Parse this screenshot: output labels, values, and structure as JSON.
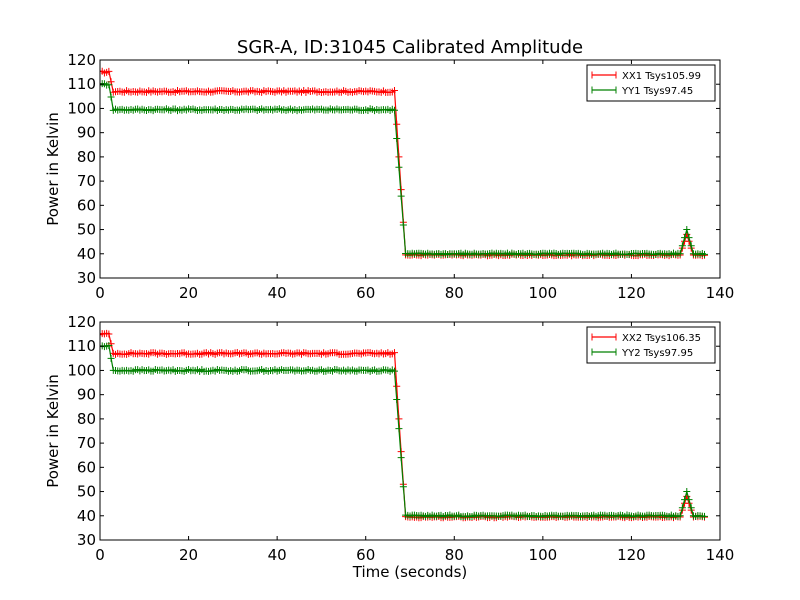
{
  "figure": {
    "title": "SGR-A, ID:31045 Calibrated Amplitude",
    "xlabel": "Time (seconds)"
  },
  "colors": {
    "red": "#ff0000",
    "green": "#008000"
  },
  "chart_data": [
    {
      "type": "line",
      "ylabel": "Power in Kelvin",
      "xlim": [
        0,
        140
      ],
      "ylim": [
        30,
        120
      ],
      "xticks": [
        0,
        20,
        40,
        60,
        80,
        100,
        120,
        140
      ],
      "yticks": [
        30,
        40,
        50,
        60,
        70,
        80,
        90,
        100,
        110,
        120
      ],
      "grid": false,
      "legend_position": "top-right",
      "series": [
        {
          "name": "XX1 Tsys105.99",
          "color": "#ff0000",
          "marker": "+",
          "profile": {
            "start": [
              0,
              2
            ],
            "start_y": 115,
            "step1_end": 3,
            "plateau": 107,
            "drop": [
              66.5,
              69
            ],
            "floor": 39.5,
            "bump": [
              131,
              134
            ],
            "bump_peak": 48,
            "end": 136.5
          }
        },
        {
          "name": "YY1 Tsys97.45",
          "color": "#008000",
          "marker": "+",
          "profile": {
            "start": [
              0,
              2
            ],
            "start_y": 110,
            "step1_end": 3,
            "plateau": 99.5,
            "drop": [
              66.5,
              69
            ],
            "floor": 40,
            "bump": [
              131,
              134
            ],
            "bump_peak": 50,
            "end": 136.5
          }
        }
      ]
    },
    {
      "type": "line",
      "ylabel": "Power in Kelvin",
      "xlabel": "Time (seconds)",
      "xlim": [
        0,
        140
      ],
      "ylim": [
        30,
        120
      ],
      "xticks": [
        0,
        20,
        40,
        60,
        80,
        100,
        120,
        140
      ],
      "yticks": [
        30,
        40,
        50,
        60,
        70,
        80,
        90,
        100,
        110,
        120
      ],
      "grid": false,
      "legend_position": "top-right",
      "series": [
        {
          "name": "XX2 Tsys106.35",
          "color": "#ff0000",
          "marker": "+",
          "profile": {
            "start": [
              0,
              2
            ],
            "start_y": 115,
            "step1_end": 3,
            "plateau": 107,
            "drop": [
              66.5,
              69
            ],
            "floor": 39.5,
            "bump": [
              131,
              134
            ],
            "bump_peak": 48,
            "end": 136.5
          }
        },
        {
          "name": "YY2 Tsys97.95",
          "color": "#008000",
          "marker": "+",
          "profile": {
            "start": [
              0,
              2
            ],
            "start_y": 110,
            "step1_end": 3,
            "plateau": 100,
            "drop": [
              66.5,
              69
            ],
            "floor": 40,
            "bump": [
              131,
              134
            ],
            "bump_peak": 50,
            "end": 136.5
          }
        }
      ]
    }
  ]
}
